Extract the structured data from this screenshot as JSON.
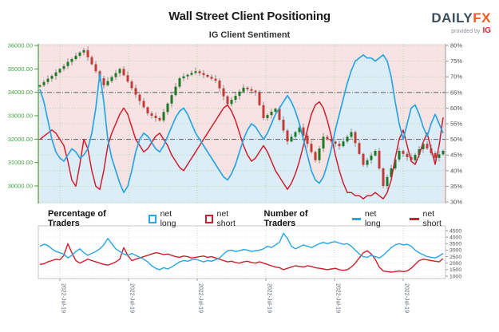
{
  "header": {
    "title": "Wall Street Client Positioning",
    "subtitle": "IG Client Sentiment",
    "logo": {
      "daily": "DAILY",
      "fx": "FX",
      "provided_by": "provided by",
      "ig": "IG"
    }
  },
  "legend": {
    "items": [
      {
        "text": "Percentage of Traders"
      },
      {
        "text": "net long"
      },
      {
        "text": "net short"
      },
      {
        "text": "Number of Traders"
      },
      {
        "text": "net long"
      },
      {
        "text": "net short"
      }
    ]
  },
  "colors": {
    "net_long_blue": "#29a5e3",
    "net_short_red": "#cf1f2e",
    "price_axis_green": "#44a13f",
    "grid_green": "#aad6a0",
    "reference_gray": "#6b6f73",
    "candle_up": "#1d7a24",
    "candle_down": "#c23b34",
    "wick": "#666666",
    "pink_region": "#f7e3e3",
    "blue_region": "#dcedf8",
    "axis_text_gray": "#4a4f54",
    "date_text": "#5a6670",
    "border_gray": "#c0c4c8"
  },
  "chart_data": [
    {
      "type": "candlestick_with_sentiment_lines",
      "title": "IG Client Sentiment",
      "price_axis": {
        "side": "left",
        "min": 30000,
        "max": 36000,
        "labels": [
          "36000.00",
          "35000.00",
          "34000.00",
          "33000.00",
          "32000.00",
          "31000.00",
          "30000.00"
        ]
      },
      "percent_axis": {
        "side": "right",
        "min": 30,
        "max": 80,
        "labels": [
          "80%",
          "75%",
          "70%",
          "65%",
          "60%",
          "55%",
          "50%",
          "45%",
          "40%",
          "35%",
          "30%"
        ]
      },
      "reference_lines_percent": [
        65,
        50
      ],
      "region_shading": {
        "above_net_long_line": "pink_region",
        "below_net_long_line": "blue_region"
      },
      "series": [
        {
          "name": "price candles (close)",
          "values": [
            34300,
            34440,
            34580,
            34700,
            34850,
            35000,
            35120,
            35300,
            35420,
            35560,
            35700,
            35800,
            35500,
            35200,
            34900,
            34600,
            34300,
            34480,
            34650,
            34820,
            35000,
            34730,
            34460,
            34180,
            33900,
            33630,
            33360,
            33100,
            33000,
            32900,
            32800,
            33160,
            33520,
            33880,
            34240,
            34600,
            34680,
            34750,
            34830,
            34900,
            34820,
            34740,
            34660,
            34580,
            34500,
            34170,
            33830,
            33500,
            33680,
            33850,
            34030,
            34200,
            34130,
            34070,
            34000,
            33450,
            32900,
            33030,
            33170,
            33300,
            32830,
            32370,
            31900,
            32100,
            32300,
            32500,
            32150,
            31800,
            31450,
            31100,
            31600,
            32100,
            32000,
            31900,
            31800,
            31700,
            31900,
            32100,
            32300,
            31830,
            31370,
            30900,
            31100,
            31300,
            31500,
            30750,
            30000,
            30380,
            30750,
            31130,
            31500,
            31370,
            31230,
            31100,
            31330,
            31570,
            31800,
            31600,
            31400,
            31200,
            31350,
            31500
          ]
        },
        {
          "name": "net long (% of traders)",
          "color": "#29a5e3",
          "values": [
            66,
            62,
            56,
            50,
            46,
            44,
            43,
            45,
            47,
            46,
            44,
            45,
            47,
            52,
            60,
            71,
            62,
            50,
            44,
            40,
            36,
            33,
            35,
            40,
            46,
            50,
            52,
            51,
            49,
            47,
            46,
            48,
            51,
            54,
            57,
            59,
            60,
            58,
            55,
            52,
            50,
            48,
            46,
            44,
            42,
            40,
            38,
            37,
            39,
            42,
            46,
            50,
            53,
            55,
            54,
            52,
            50,
            52,
            55,
            58,
            60,
            62,
            64,
            62,
            59,
            55,
            50,
            45,
            40,
            37,
            36,
            38,
            42,
            47,
            53,
            58,
            63,
            68,
            72,
            75,
            76,
            77,
            76,
            76,
            75,
            76,
            77,
            75,
            70,
            62,
            55,
            50,
            55,
            60,
            61,
            58,
            54,
            51,
            55,
            58,
            55,
            52
          ]
        },
        {
          "name": "net short (% of traders)",
          "color": "#cf1f2e",
          "values": [
            50,
            51,
            52,
            53,
            52,
            50,
            48,
            43,
            37,
            35,
            42,
            50,
            47,
            40,
            35,
            34,
            40,
            48,
            52,
            55,
            58,
            60,
            58,
            54,
            50,
            48,
            46,
            47,
            49,
            51,
            52,
            50,
            48,
            45,
            43,
            41,
            40,
            42,
            44,
            46,
            48,
            50,
            52,
            54,
            56,
            58,
            60,
            61,
            59,
            56,
            52,
            48,
            45,
            43,
            44,
            46,
            48,
            46,
            43,
            40,
            38,
            36,
            34,
            36,
            39,
            43,
            48,
            53,
            58,
            61,
            62,
            60,
            56,
            51,
            45,
            40,
            36,
            33,
            33,
            32,
            32,
            31,
            32,
            32,
            33,
            32,
            31,
            33,
            37,
            44,
            50,
            53,
            48,
            43,
            42,
            45,
            49,
            52,
            47,
            42,
            48,
            57
          ]
        }
      ]
    },
    {
      "type": "line",
      "count_axis": {
        "side": "right",
        "min": 1000,
        "max": 4500,
        "labels": [
          "4500",
          "4000",
          "3500",
          "3000",
          "2500",
          "2000",
          "1500",
          "1000"
        ]
      },
      "x_axis_labels": [
        "2022-Jul-19",
        "2022-Jul-19",
        "2022-Jul-19",
        "2022-Jul-19",
        "2022-Jul-19",
        "2022-Jul-19"
      ],
      "series": [
        {
          "name": "net long (number of traders)",
          "color": "#29a5e3",
          "values": [
            3300,
            3450,
            3350,
            3100,
            2900,
            2800,
            2700,
            2400,
            2600,
            2900,
            3100,
            2800,
            2600,
            2750,
            2900,
            3100,
            3400,
            3900,
            3500,
            3100,
            2900,
            2700,
            2600,
            2750,
            2600,
            2450,
            2300,
            2100,
            1800,
            1600,
            1500,
            1650,
            1550,
            1700,
            1900,
            2100,
            2200,
            2150,
            2250,
            2300,
            2200,
            2100,
            2200,
            2150,
            2250,
            2400,
            2700,
            2950,
            3000,
            2900,
            2950,
            3050,
            3000,
            2900,
            2950,
            3000,
            3100,
            3300,
            3200,
            3400,
            3600,
            4300,
            3900,
            3300,
            3100,
            3250,
            3400,
            3300,
            3200,
            3350,
            3500,
            3600,
            3500,
            3600,
            3650,
            3550,
            3450,
            3500,
            3300,
            3000,
            2700,
            2500,
            2450,
            2600,
            2500,
            2400,
            2600,
            2900,
            3200,
            3400,
            3500,
            3400,
            3450,
            3300,
            3000,
            2800,
            2650,
            2500,
            2450,
            2400,
            2550,
            2750
          ]
        },
        {
          "name": "net short (number of traders)",
          "color": "#cf1f2e",
          "values": [
            1900,
            1950,
            2100,
            2200,
            2300,
            2250,
            2600,
            3500,
            2800,
            2200,
            2000,
            2150,
            2300,
            2200,
            2100,
            2000,
            1900,
            1850,
            1950,
            2100,
            2300,
            3200,
            2600,
            2200,
            2300,
            2400,
            2500,
            2600,
            2700,
            2800,
            2750,
            2650,
            2700,
            2600,
            2500,
            2450,
            2550,
            2500,
            2400,
            2450,
            2500,
            2550,
            2450,
            2500,
            2400,
            2300,
            2200,
            2100,
            2150,
            2050,
            2000,
            2100,
            2150,
            2050,
            2000,
            2100,
            2000,
            1900,
            1800,
            1700,
            1650,
            1500,
            1600,
            1700,
            1800,
            1750,
            1700,
            1800,
            1750,
            1650,
            1600,
            1550,
            1500,
            1550,
            1600,
            1500,
            1450,
            1500,
            1700,
            2000,
            2400,
            2800,
            2950,
            2700,
            2300,
            1700,
            1400,
            1350,
            1300,
            1350,
            1400,
            1350,
            1400,
            1600,
            1900,
            2200,
            2300,
            2250,
            2200,
            2150,
            2100,
            2350
          ]
        }
      ]
    }
  ]
}
